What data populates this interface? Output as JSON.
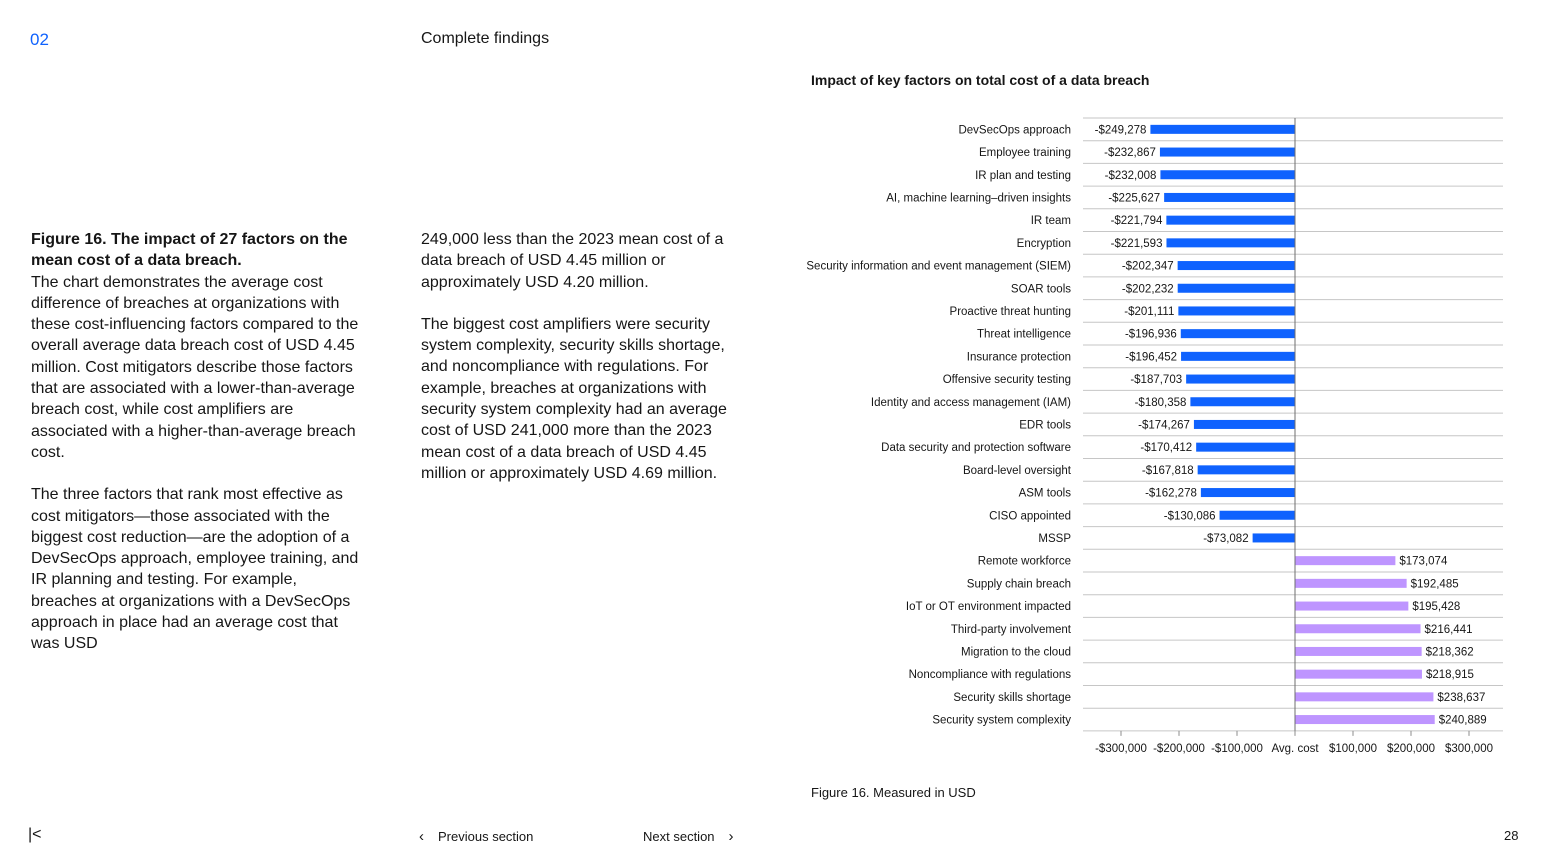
{
  "header": {
    "section_number": "02",
    "section_title": "Complete findings"
  },
  "body": {
    "figure_title": "Figure 16. The impact of 27 factors on the mean cost of a data breach.",
    "paragraph1": "The chart demonstrates the average cost difference of breaches at organizations with these cost-influencing factors compared to the overall average data breach cost of USD 4.45 million. Cost mitigators describe those factors that are associated with a lower-than-average breach cost, while cost amplifiers are associated with a higher-than-average breach cost.",
    "paragraph2": "The three factors that rank most effective as cost mitigators—those associated with the biggest cost reduction—are the adoption of a DevSecOps approach, employee training, and IR planning and testing. For example, breaches at organizations with a DevSecOps approach in place had an average cost that was USD",
    "paragraph3": "249,000 less than the 2023 mean cost of a data breach of USD 4.45 million or approximately USD 4.20 million.",
    "paragraph4": "The biggest cost amplifiers were security system complexity, security skills shortage, and noncompliance with regulations. For example, breaches at organizations with security system complexity had an average cost of USD 241,000 more than the 2023 mean cost of a data breach of USD 4.45 million or approximately USD 4.69 million."
  },
  "chart_data": {
    "type": "bar",
    "orientation": "horizontal",
    "title": "Impact of key factors on total cost of a data breach",
    "caption": "Figure 16. Measured in USD",
    "xlim": [
      -300000,
      300000
    ],
    "x_ticks": [
      -300000,
      -200000,
      -100000,
      0,
      100000,
      200000,
      300000
    ],
    "x_tick_labels": [
      "-$300,000",
      "-$200,000",
      "-$100,000",
      "Avg. cost",
      "$100,000",
      "$200,000",
      "$300,000"
    ],
    "colors": {
      "negative": "#0f62fe",
      "positive": "#be95ff"
    },
    "grid": true,
    "categories": [
      "DevSecOps approach",
      "Employee training",
      "IR plan and testing",
      "AI, machine learning–driven insights",
      "IR team",
      "Encryption",
      "Security information and event management (SIEM)",
      "SOAR tools",
      "Proactive threat hunting",
      "Threat intelligence",
      "Insurance protection",
      "Offensive security testing",
      "Identity and access management (IAM)",
      "EDR tools",
      "Data security and protection software",
      "Board-level oversight",
      "ASM tools",
      "CISO appointed",
      "MSSP",
      "Remote workforce",
      "Supply chain breach",
      "IoT or OT environment impacted",
      "Third-party involvement",
      "Migration to the cloud",
      "Noncompliance with regulations",
      "Security skills shortage",
      "Security system complexity"
    ],
    "values": [
      -249278,
      -232867,
      -232008,
      -225627,
      -221794,
      -221593,
      -202347,
      -202232,
      -201111,
      -196936,
      -196452,
      -187703,
      -180358,
      -174267,
      -170412,
      -167818,
      -162278,
      -130086,
      -73082,
      173074,
      192485,
      195428,
      216441,
      218362,
      218915,
      238637,
      240889
    ],
    "value_labels": [
      "-$249,278",
      "-$232,867",
      "-$232,008",
      "-$225,627",
      "-$221,794",
      "-$221,593",
      "-$202,347",
      "-$202,232",
      "-$201,111",
      "-$196,936",
      "-$196,452",
      "-$187,703",
      "-$180,358",
      "-$174,267",
      "-$170,412",
      "-$167,818",
      "-$162,278",
      "-$130,086",
      "-$73,082",
      "$173,074",
      "$192,485",
      "$195,428",
      "$216,441",
      "$218,362",
      "$218,915",
      "$238,637",
      "$240,889"
    ]
  },
  "footer": {
    "first_page_icon": "|<",
    "prev_arrow": "‹",
    "prev_label": "Previous section",
    "next_label": "Next section",
    "next_arrow": "›",
    "page_number": "28"
  }
}
